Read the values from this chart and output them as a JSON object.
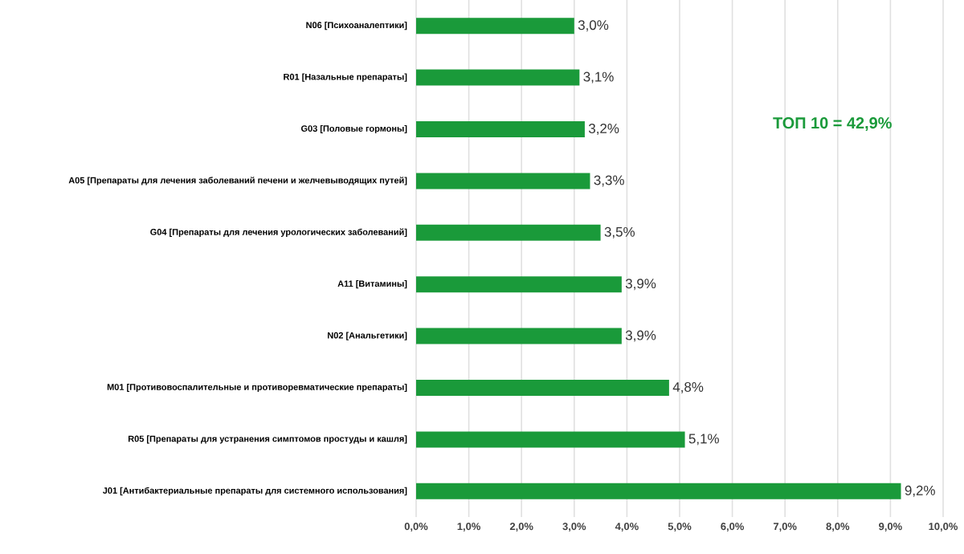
{
  "chart_data": {
    "type": "bar",
    "orientation": "horizontal",
    "categories": [
      "N06 [Психоаналептики]",
      "R01 [Назальные препараты]",
      "G03 [Половые гормоны]",
      "A05 [Препараты для лечения заболеваний печени и желчевыводящих путей]",
      "G04 [Препараты для лечения урологических заболеваний]",
      "A11 [Витамины]",
      "N02 [Анальгетики]",
      "M01 [Противовоспалительные и противоревматические препараты]",
      "R05 [Препараты для устранения симптомов простуды и кашля]",
      "J01 [Антибактериальные препараты для системного использования]"
    ],
    "values": [
      3.0,
      3.1,
      3.2,
      3.3,
      3.5,
      3.9,
      3.9,
      4.8,
      5.1,
      9.2
    ],
    "value_labels": [
      "3,0%",
      "3,1%",
      "3,2%",
      "3,3%",
      "3,5%",
      "3,9%",
      "3,9%",
      "4,8%",
      "5,1%",
      "9,2%"
    ],
    "color": "#1a9a3a",
    "xlim": [
      0,
      10
    ],
    "xticks": [
      {
        "value": 0,
        "label": "0,0%"
      },
      {
        "value": 1,
        "label": "1,0%"
      },
      {
        "value": 2,
        "label": "2,0%"
      },
      {
        "value": 3,
        "label": "3,0%"
      },
      {
        "value": 4,
        "label": "4,0%"
      },
      {
        "value": 5,
        "label": "5,0%"
      },
      {
        "value": 6,
        "label": "6,0%"
      },
      {
        "value": 7,
        "label": "7,0%"
      },
      {
        "value": 8,
        "label": "8,0%"
      },
      {
        "value": 9,
        "label": "9,0%"
      },
      {
        "value": 10,
        "label": "10,0%"
      }
    ],
    "grid": "x",
    "annotations": [
      "ТОП 10 = 42,9%"
    ]
  }
}
